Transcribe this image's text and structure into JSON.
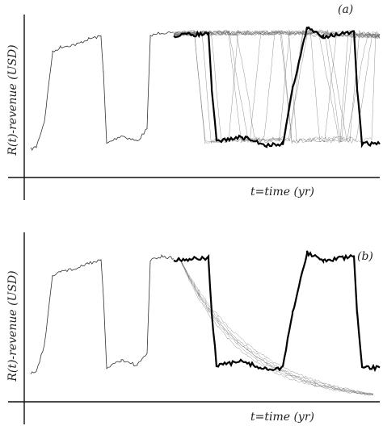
{
  "panels": [
    {
      "label": "(a)",
      "y_label": "R(t)-revenue (USD)",
      "x_label": "t=time (yr)"
    },
    {
      "label": "(b)",
      "y_label": "R(t)-revenue (USD)",
      "x_label": "t=time (yr)"
    }
  ]
}
